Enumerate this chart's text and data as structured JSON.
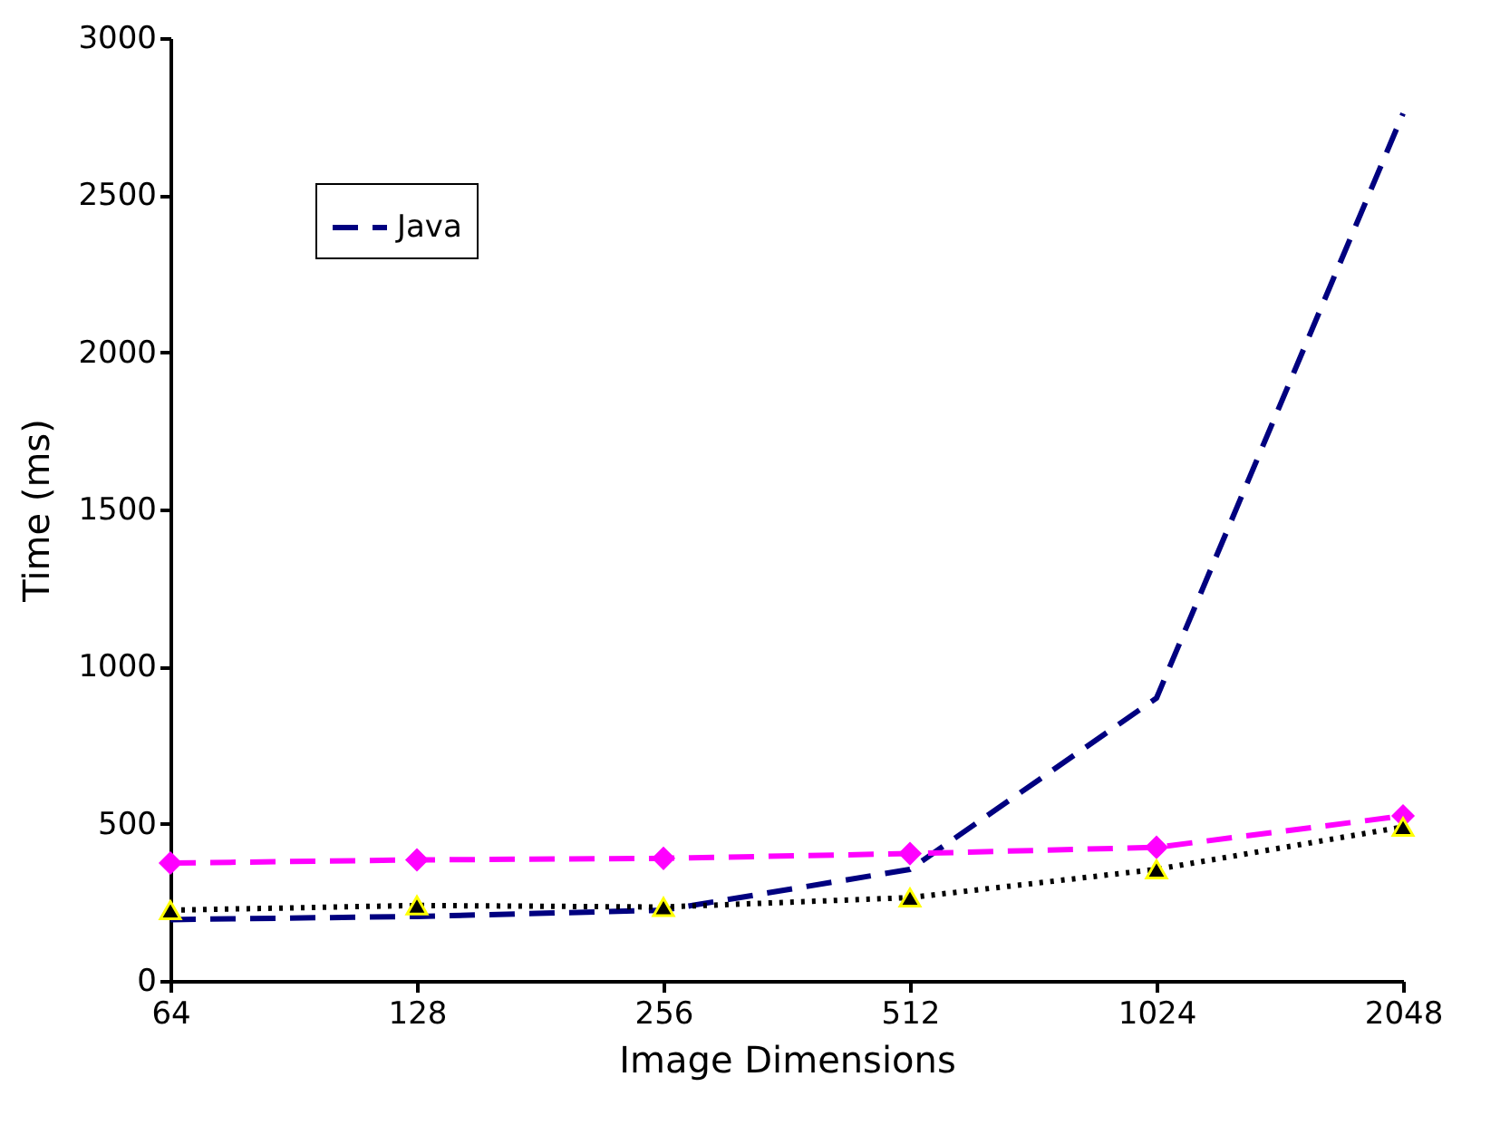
{
  "chart_data": {
    "type": "line",
    "xlabel": "Image Dimensions",
    "ylabel": "Time (ms)",
    "categories": [
      "64",
      "128",
      "256",
      "512",
      "1024",
      "2048"
    ],
    "series": [
      {
        "name": "Java",
        "color": "#000080",
        "line_style": "dashed",
        "marker": "none",
        "values": [
          195,
          205,
          225,
          355,
          900,
          2760
        ]
      },
      {
        "color": "#ff00ff",
        "line_style": "dashed",
        "marker": "diamond",
        "values": [
          375,
          385,
          390,
          405,
          425,
          525
        ]
      },
      {
        "color": "#000000",
        "line_style": "dotted",
        "marker": "triangle",
        "values": [
          225,
          240,
          235,
          265,
          355,
          490
        ]
      }
    ],
    "ylim": [
      0,
      3000
    ],
    "yticks": [
      0,
      500,
      1000,
      1500,
      2000,
      2500,
      3000
    ],
    "grid": false,
    "legend": "top left"
  }
}
